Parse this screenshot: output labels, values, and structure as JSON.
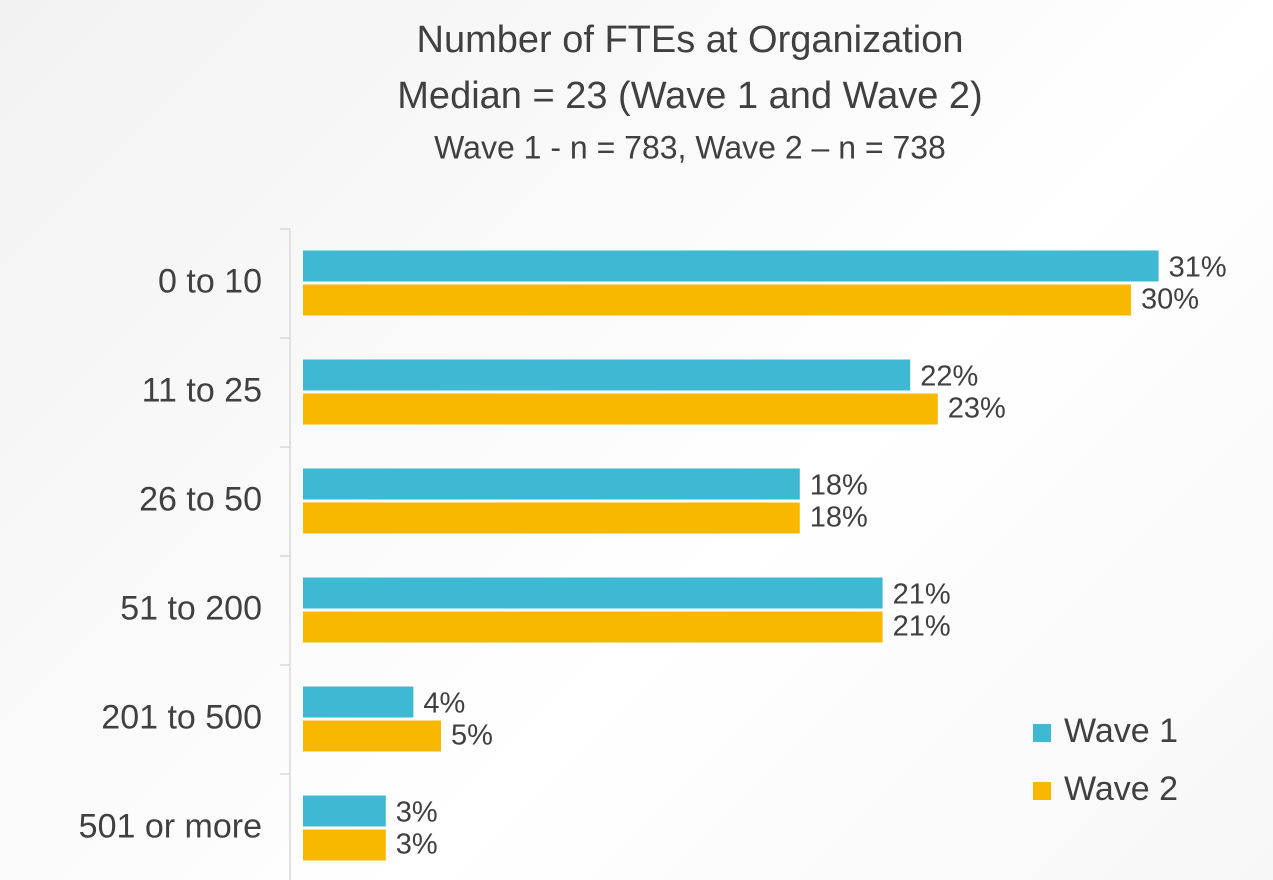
{
  "chart_data": {
    "type": "bar",
    "orientation": "horizontal",
    "title": "Number of FTEs at Organization",
    "subtitle": [
      "Median = 23 (Wave 1 and Wave 2)",
      "Wave 1 - n = 783, Wave 2 – n = 738"
    ],
    "categories": [
      "0 to 10",
      "11 to 25",
      "26 to 50",
      "51 to 200",
      "201 to 500",
      "501 or more"
    ],
    "series": [
      {
        "name": "Wave 1",
        "color": "#3fb8d3",
        "values": [
          31,
          22,
          18,
          21,
          4,
          3
        ],
        "value_labels": [
          "31%",
          "22%",
          "18%",
          "21%",
          "4%",
          "3%"
        ]
      },
      {
        "name": "Wave 2",
        "color": "#f9b800",
        "values": [
          30,
          23,
          18,
          21,
          5,
          3
        ],
        "value_labels": [
          "30%",
          "23%",
          "18%",
          "21%",
          "5%",
          "3%"
        ]
      }
    ],
    "legend": "right"
  }
}
